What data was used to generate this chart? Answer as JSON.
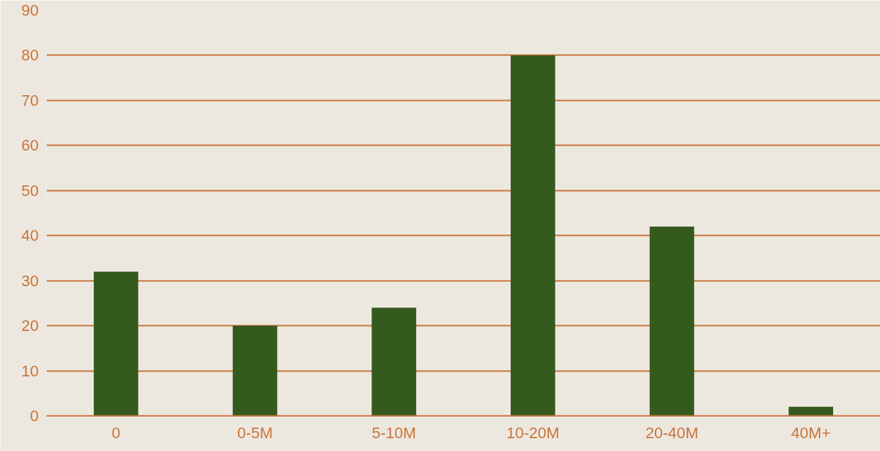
{
  "chart_data": {
    "type": "bar",
    "categories": [
      "0",
      "0-5M",
      "5-10M",
      "10-20M",
      "20-40M",
      "40M+"
    ],
    "values": [
      32,
      20,
      24,
      80,
      42,
      2
    ],
    "color": "#345a1e",
    "ylim": [
      0,
      90
    ],
    "yticks": [
      0,
      10,
      20,
      30,
      40,
      50,
      60,
      70,
      80,
      90
    ],
    "grid": "y"
  }
}
